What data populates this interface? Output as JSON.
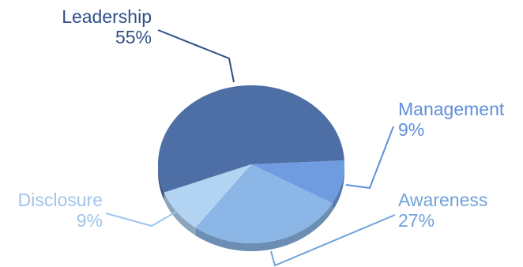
{
  "chart_data": {
    "type": "pie",
    "title": "",
    "style": "3d-tilted",
    "slices": [
      {
        "label": "Leadership",
        "value": 55,
        "display": "55%",
        "color": "#4e6fa6",
        "label_color": "#2f4f86"
      },
      {
        "label": "Management",
        "value": 9,
        "display": "9%",
        "color": "#6f9be0",
        "label_color": "#5f8fdc"
      },
      {
        "label": "Awareness",
        "value": 27,
        "display": "27%",
        "color": "#8bb6e6",
        "label_color": "#6fa3d8"
      },
      {
        "label": "Disclosure",
        "value": 9,
        "display": "9%",
        "color": "#b2d3f2",
        "label_color": "#9fc5ea"
      }
    ]
  }
}
